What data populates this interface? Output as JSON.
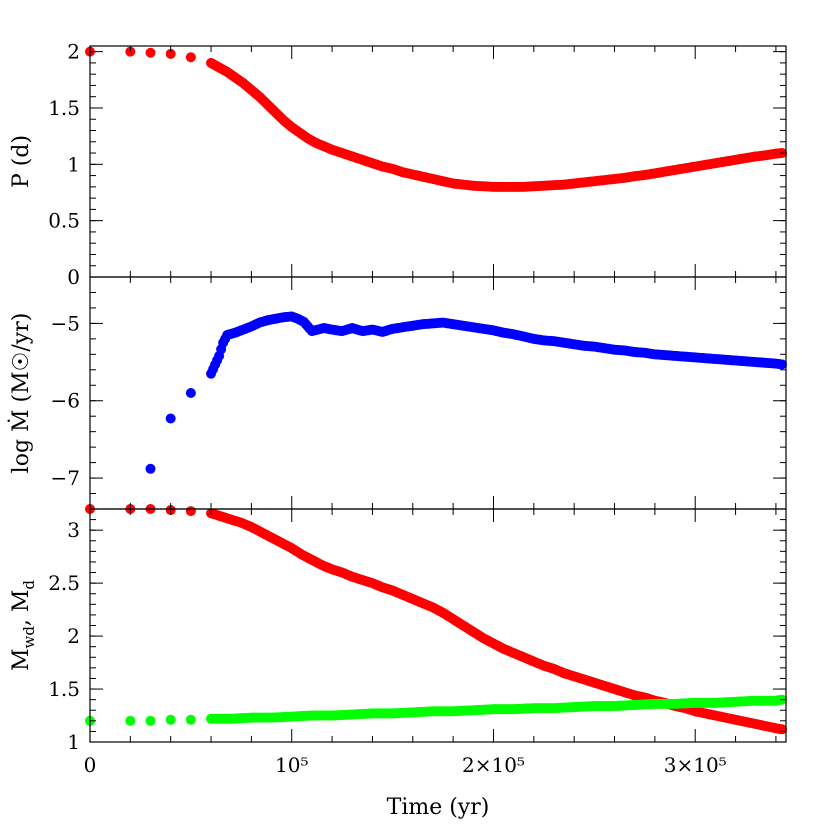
{
  "chart_data": {
    "type": "scatter",
    "xlabel": "Time (yr)",
    "xlim": [
      0,
      345000
    ],
    "x_ticks": [
      {
        "value": 0,
        "label": "0"
      },
      {
        "value": 100000,
        "label": "10⁵"
      },
      {
        "value": 200000,
        "label": "2×10⁵"
      },
      {
        "value": 300000,
        "label": "3×10⁵"
      }
    ],
    "panels": [
      {
        "id": "period",
        "ylabel": "P (d)",
        "ylim": [
          0,
          2.05
        ],
        "y_ticks": [
          {
            "value": 0,
            "label": "0"
          },
          {
            "value": 0.5,
            "label": "0.5"
          },
          {
            "value": 1,
            "label": "1"
          },
          {
            "value": 1.5,
            "label": "1.5"
          },
          {
            "value": 2,
            "label": "2"
          }
        ],
        "y_minor_step": 0.1,
        "series": [
          {
            "color": "#ff0000",
            "x": [
              0,
              20000,
              30000,
              40000,
              50000,
              60000,
              64000,
              68000,
              72000,
              76000,
              80000,
              84000,
              88000,
              92000,
              96000,
              100000,
              104000,
              108000,
              112000,
              116000,
              120000,
              125000,
              130000,
              135000,
              140000,
              145000,
              150000,
              155000,
              160000,
              165000,
              170000,
              175000,
              180000,
              185000,
              190000,
              195000,
              200000,
              205000,
              210000,
              215000,
              220000,
              225000,
              230000,
              235000,
              240000,
              245000,
              250000,
              255000,
              260000,
              265000,
              270000,
              275000,
              280000,
              285000,
              290000,
              295000,
              300000,
              305000,
              310000,
              315000,
              320000,
              325000,
              330000,
              335000,
              340000,
              343000
            ],
            "y": [
              2.0,
              2.0,
              1.99,
              1.98,
              1.95,
              1.9,
              1.86,
              1.82,
              1.77,
              1.72,
              1.66,
              1.6,
              1.53,
              1.46,
              1.39,
              1.33,
              1.28,
              1.23,
              1.19,
              1.16,
              1.13,
              1.1,
              1.07,
              1.04,
              1.01,
              0.98,
              0.96,
              0.93,
              0.91,
              0.89,
              0.87,
              0.85,
              0.83,
              0.82,
              0.81,
              0.805,
              0.8,
              0.8,
              0.8,
              0.8,
              0.805,
              0.81,
              0.815,
              0.82,
              0.83,
              0.84,
              0.85,
              0.86,
              0.87,
              0.88,
              0.895,
              0.905,
              0.92,
              0.935,
              0.95,
              0.965,
              0.98,
              0.995,
              1.01,
              1.025,
              1.04,
              1.055,
              1.07,
              1.08,
              1.095,
              1.1
            ]
          }
        ]
      },
      {
        "id": "mass-transfer-rate",
        "ylabel": "log Ṁ (M☉/yr)",
        "ylim": [
          -7.4,
          -4.4
        ],
        "y_ticks": [
          {
            "value": -7,
            "label": "−7"
          },
          {
            "value": -6,
            "label": "−6"
          },
          {
            "value": -5,
            "label": "−5"
          }
        ],
        "y_minor_step": 0.2,
        "series": [
          {
            "color": "#0000ff",
            "x": [
              30000,
              40000,
              50000,
              60000,
              64000,
              66000,
              68000,
              72000,
              76000,
              80000,
              84000,
              88000,
              92000,
              96000,
              100000,
              103000,
              106000,
              110000,
              113000,
              116000,
              120000,
              125000,
              130000,
              135000,
              140000,
              145000,
              150000,
              155000,
              160000,
              165000,
              170000,
              175000,
              180000,
              185000,
              190000,
              195000,
              200000,
              205000,
              210000,
              215000,
              220000,
              225000,
              230000,
              235000,
              240000,
              245000,
              250000,
              255000,
              260000,
              265000,
              270000,
              275000,
              280000,
              285000,
              290000,
              295000,
              300000,
              305000,
              310000,
              315000,
              320000,
              325000,
              330000,
              335000,
              340000,
              343000
            ],
            "y": [
              -6.88,
              -6.23,
              -5.9,
              -5.65,
              -5.42,
              -5.25,
              -5.15,
              -5.12,
              -5.08,
              -5.04,
              -4.99,
              -4.96,
              -4.94,
              -4.92,
              -4.91,
              -4.94,
              -4.98,
              -5.1,
              -5.08,
              -5.06,
              -5.08,
              -5.1,
              -5.06,
              -5.1,
              -5.08,
              -5.11,
              -5.07,
              -5.05,
              -5.03,
              -5.01,
              -5.0,
              -4.99,
              -5.01,
              -5.03,
              -5.05,
              -5.07,
              -5.09,
              -5.12,
              -5.14,
              -5.17,
              -5.2,
              -5.22,
              -5.23,
              -5.25,
              -5.27,
              -5.29,
              -5.3,
              -5.32,
              -5.34,
              -5.35,
              -5.37,
              -5.38,
              -5.4,
              -5.41,
              -5.42,
              -5.43,
              -5.44,
              -5.45,
              -5.46,
              -5.47,
              -5.48,
              -5.49,
              -5.5,
              -5.51,
              -5.52,
              -5.53
            ]
          }
        ]
      },
      {
        "id": "masses",
        "ylabel": "M_wd, M_d",
        "ylim": [
          1,
          3.2
        ],
        "y_ticks": [
          {
            "value": 1,
            "label": "1"
          },
          {
            "value": 1.5,
            "label": "1.5"
          },
          {
            "value": 2,
            "label": "2"
          },
          {
            "value": 2.5,
            "label": "2.5"
          },
          {
            "value": 3,
            "label": "3"
          }
        ],
        "y_minor_step": 0.1,
        "series": [
          {
            "color": "#ff0000",
            "x": [
              0,
              20000,
              30000,
              40000,
              50000,
              60000,
              65000,
              70000,
              75000,
              80000,
              85000,
              90000,
              95000,
              100000,
              105000,
              110000,
              115000,
              120000,
              125000,
              130000,
              135000,
              140000,
              145000,
              150000,
              155000,
              160000,
              165000,
              170000,
              175000,
              180000,
              185000,
              190000,
              195000,
              200000,
              205000,
              210000,
              215000,
              220000,
              225000,
              230000,
              235000,
              240000,
              245000,
              250000,
              255000,
              260000,
              265000,
              270000,
              275000,
              280000,
              285000,
              290000,
              295000,
              300000,
              305000,
              310000,
              315000,
              320000,
              325000,
              330000,
              335000,
              340000,
              343000
            ],
            "y": [
              3.2,
              3.2,
              3.2,
              3.19,
              3.18,
              3.16,
              3.13,
              3.1,
              3.07,
              3.03,
              2.98,
              2.93,
              2.88,
              2.83,
              2.77,
              2.72,
              2.67,
              2.63,
              2.6,
              2.56,
              2.53,
              2.5,
              2.46,
              2.43,
              2.39,
              2.35,
              2.31,
              2.27,
              2.22,
              2.16,
              2.1,
              2.04,
              1.98,
              1.93,
              1.88,
              1.84,
              1.8,
              1.76,
              1.72,
              1.69,
              1.65,
              1.62,
              1.59,
              1.56,
              1.53,
              1.5,
              1.47,
              1.44,
              1.42,
              1.39,
              1.37,
              1.34,
              1.32,
              1.29,
              1.27,
              1.25,
              1.23,
              1.21,
              1.19,
              1.17,
              1.15,
              1.13,
              1.12
            ]
          },
          {
            "color": "#00ff00",
            "x": [
              0,
              20000,
              30000,
              40000,
              50000,
              60000,
              65000,
              70000,
              80000,
              90000,
              100000,
              110000,
              120000,
              130000,
              140000,
              150000,
              160000,
              170000,
              180000,
              190000,
              200000,
              210000,
              220000,
              230000,
              240000,
              250000,
              260000,
              270000,
              280000,
              290000,
              300000,
              310000,
              320000,
              330000,
              340000,
              343000
            ],
            "y": [
              1.2,
              1.2,
              1.2,
              1.21,
              1.21,
              1.22,
              1.22,
              1.22,
              1.23,
              1.23,
              1.24,
              1.25,
              1.25,
              1.26,
              1.27,
              1.27,
              1.28,
              1.29,
              1.29,
              1.3,
              1.31,
              1.31,
              1.32,
              1.32,
              1.33,
              1.34,
              1.34,
              1.35,
              1.36,
              1.36,
              1.37,
              1.37,
              1.38,
              1.39,
              1.39,
              1.4
            ]
          }
        ]
      }
    ]
  }
}
